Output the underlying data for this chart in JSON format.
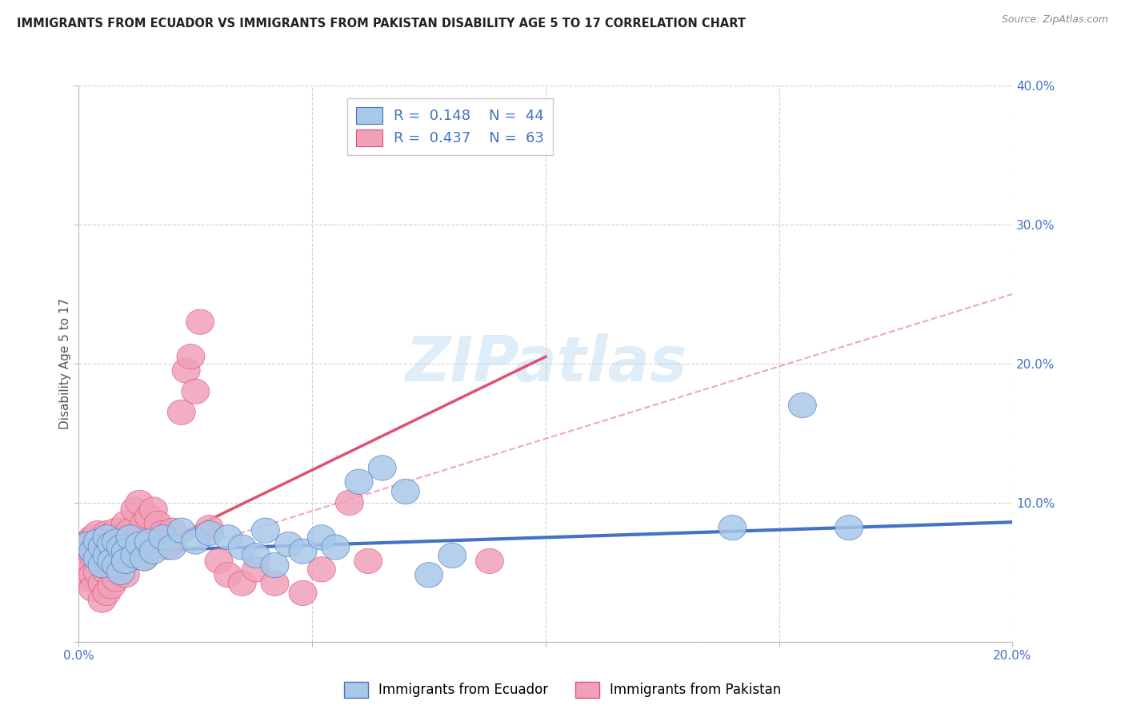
{
  "title": "IMMIGRANTS FROM ECUADOR VS IMMIGRANTS FROM PAKISTAN DISABILITY AGE 5 TO 17 CORRELATION CHART",
  "source": "Source: ZipAtlas.com",
  "ylabel": "Disability Age 5 to 17",
  "xlim": [
    0.0,
    0.2
  ],
  "ylim": [
    0.0,
    0.4
  ],
  "ecuador_color": "#A8C8E8",
  "pakistan_color": "#F0A0B8",
  "ecuador_line_color": "#4472C4",
  "pakistan_line_color": "#E05070",
  "tick_label_color": "#4472C4",
  "watermark": "ZIPatlas",
  "legend_ec_text": "R = 0.148   N = 44",
  "legend_pk_text": "R = 0.437   N = 63",
  "ecuador_scatter": [
    [
      0.002,
      0.07
    ],
    [
      0.003,
      0.065
    ],
    [
      0.004,
      0.072
    ],
    [
      0.004,
      0.06
    ],
    [
      0.005,
      0.068
    ],
    [
      0.005,
      0.055
    ],
    [
      0.006,
      0.075
    ],
    [
      0.006,
      0.062
    ],
    [
      0.007,
      0.07
    ],
    [
      0.007,
      0.058
    ],
    [
      0.008,
      0.072
    ],
    [
      0.008,
      0.055
    ],
    [
      0.009,
      0.068
    ],
    [
      0.009,
      0.05
    ],
    [
      0.01,
      0.065
    ],
    [
      0.01,
      0.058
    ],
    [
      0.011,
      0.075
    ],
    [
      0.012,
      0.062
    ],
    [
      0.013,
      0.07
    ],
    [
      0.014,
      0.06
    ],
    [
      0.015,
      0.072
    ],
    [
      0.016,
      0.065
    ],
    [
      0.018,
      0.075
    ],
    [
      0.02,
      0.068
    ],
    [
      0.022,
      0.08
    ],
    [
      0.025,
      0.072
    ],
    [
      0.028,
      0.078
    ],
    [
      0.032,
      0.075
    ],
    [
      0.035,
      0.068
    ],
    [
      0.038,
      0.062
    ],
    [
      0.04,
      0.08
    ],
    [
      0.042,
      0.055
    ],
    [
      0.045,
      0.07
    ],
    [
      0.048,
      0.065
    ],
    [
      0.052,
      0.075
    ],
    [
      0.055,
      0.068
    ],
    [
      0.06,
      0.115
    ],
    [
      0.065,
      0.125
    ],
    [
      0.07,
      0.108
    ],
    [
      0.075,
      0.048
    ],
    [
      0.08,
      0.062
    ],
    [
      0.14,
      0.082
    ],
    [
      0.155,
      0.17
    ],
    [
      0.165,
      0.082
    ]
  ],
  "pakistan_scatter": [
    [
      0.001,
      0.07
    ],
    [
      0.001,
      0.06
    ],
    [
      0.002,
      0.072
    ],
    [
      0.002,
      0.058
    ],
    [
      0.002,
      0.045
    ],
    [
      0.003,
      0.075
    ],
    [
      0.003,
      0.062
    ],
    [
      0.003,
      0.048
    ],
    [
      0.003,
      0.038
    ],
    [
      0.004,
      0.078
    ],
    [
      0.004,
      0.065
    ],
    [
      0.004,
      0.05
    ],
    [
      0.005,
      0.072
    ],
    [
      0.005,
      0.06
    ],
    [
      0.005,
      0.042
    ],
    [
      0.005,
      0.03
    ],
    [
      0.006,
      0.078
    ],
    [
      0.006,
      0.065
    ],
    [
      0.006,
      0.05
    ],
    [
      0.006,
      0.035
    ],
    [
      0.007,
      0.075
    ],
    [
      0.007,
      0.055
    ],
    [
      0.007,
      0.04
    ],
    [
      0.008,
      0.08
    ],
    [
      0.008,
      0.062
    ],
    [
      0.008,
      0.045
    ],
    [
      0.009,
      0.075
    ],
    [
      0.009,
      0.058
    ],
    [
      0.01,
      0.085
    ],
    [
      0.01,
      0.065
    ],
    [
      0.01,
      0.048
    ],
    [
      0.011,
      0.08
    ],
    [
      0.011,
      0.06
    ],
    [
      0.012,
      0.095
    ],
    [
      0.012,
      0.07
    ],
    [
      0.013,
      0.1
    ],
    [
      0.013,
      0.075
    ],
    [
      0.014,
      0.085
    ],
    [
      0.014,
      0.06
    ],
    [
      0.015,
      0.09
    ],
    [
      0.015,
      0.068
    ],
    [
      0.016,
      0.095
    ],
    [
      0.016,
      0.072
    ],
    [
      0.017,
      0.085
    ],
    [
      0.018,
      0.078
    ],
    [
      0.019,
      0.068
    ],
    [
      0.02,
      0.08
    ],
    [
      0.022,
      0.165
    ],
    [
      0.023,
      0.195
    ],
    [
      0.024,
      0.205
    ],
    [
      0.025,
      0.18
    ],
    [
      0.026,
      0.23
    ],
    [
      0.028,
      0.082
    ],
    [
      0.03,
      0.058
    ],
    [
      0.032,
      0.048
    ],
    [
      0.035,
      0.042
    ],
    [
      0.038,
      0.052
    ],
    [
      0.042,
      0.042
    ],
    [
      0.048,
      0.035
    ],
    [
      0.052,
      0.052
    ],
    [
      0.058,
      0.1
    ],
    [
      0.062,
      0.058
    ],
    [
      0.088,
      0.058
    ]
  ],
  "ecuador_trend": [
    0.0,
    0.064,
    0.2,
    0.086
  ],
  "pakistan_trend_solid": [
    0.0,
    0.042,
    0.1,
    0.205
  ],
  "pakistan_trend_dashed": [
    0.0,
    0.042,
    0.2,
    0.25
  ]
}
